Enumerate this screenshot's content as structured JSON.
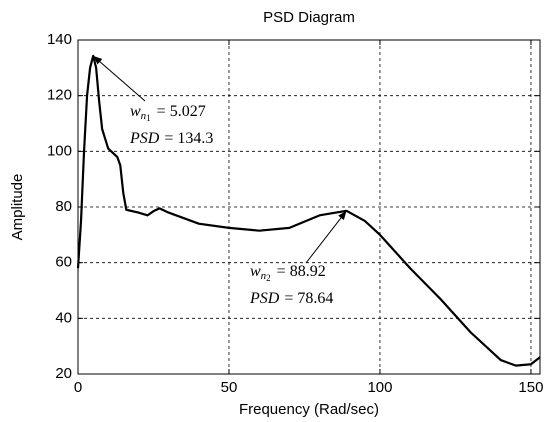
{
  "chart_data": {
    "type": "line",
    "title": "PSD Diagram",
    "xlabel": "Frequency (Rad/sec)",
    "ylabel": "Amplitude",
    "x": [
      0,
      1,
      2,
      3,
      4,
      5.027,
      6,
      7,
      8,
      10,
      13,
      14,
      15,
      16,
      20,
      23,
      25,
      27,
      30,
      40,
      50,
      60,
      70,
      80,
      88.92,
      95,
      100,
      110,
      120,
      130,
      140,
      145,
      150,
      153
    ],
    "values": [
      58,
      75,
      100,
      120,
      130,
      134.3,
      130,
      118,
      108,
      101,
      98,
      95,
      85,
      79,
      78,
      77,
      78.5,
      79.5,
      78,
      74,
      72.5,
      71.5,
      72.5,
      77,
      78.64,
      75,
      70,
      58,
      47,
      35,
      25,
      23,
      23.5,
      26
    ],
    "color": "#000000",
    "xlim": [
      0,
      153
    ],
    "xticks": [
      0,
      50,
      100,
      150
    ],
    "ylim": [
      20,
      140
    ],
    "yticks": [
      20,
      40,
      60,
      80,
      100,
      120,
      140
    ],
    "grid": true,
    "annotations": [
      {
        "x": 5.027,
        "y": 134.3,
        "symbol": "w",
        "sub": "n",
        "subsub": "1",
        "value_text": "= 5.027",
        "psd": "PSD",
        "psd_text": "= 134.3"
      },
      {
        "x": 88.92,
        "y": 78.64,
        "symbol": "w",
        "sub": "n",
        "subsub": "2",
        "value_text": "= 88.92",
        "psd": "PSD",
        "psd_text": "= 78.64"
      }
    ]
  }
}
